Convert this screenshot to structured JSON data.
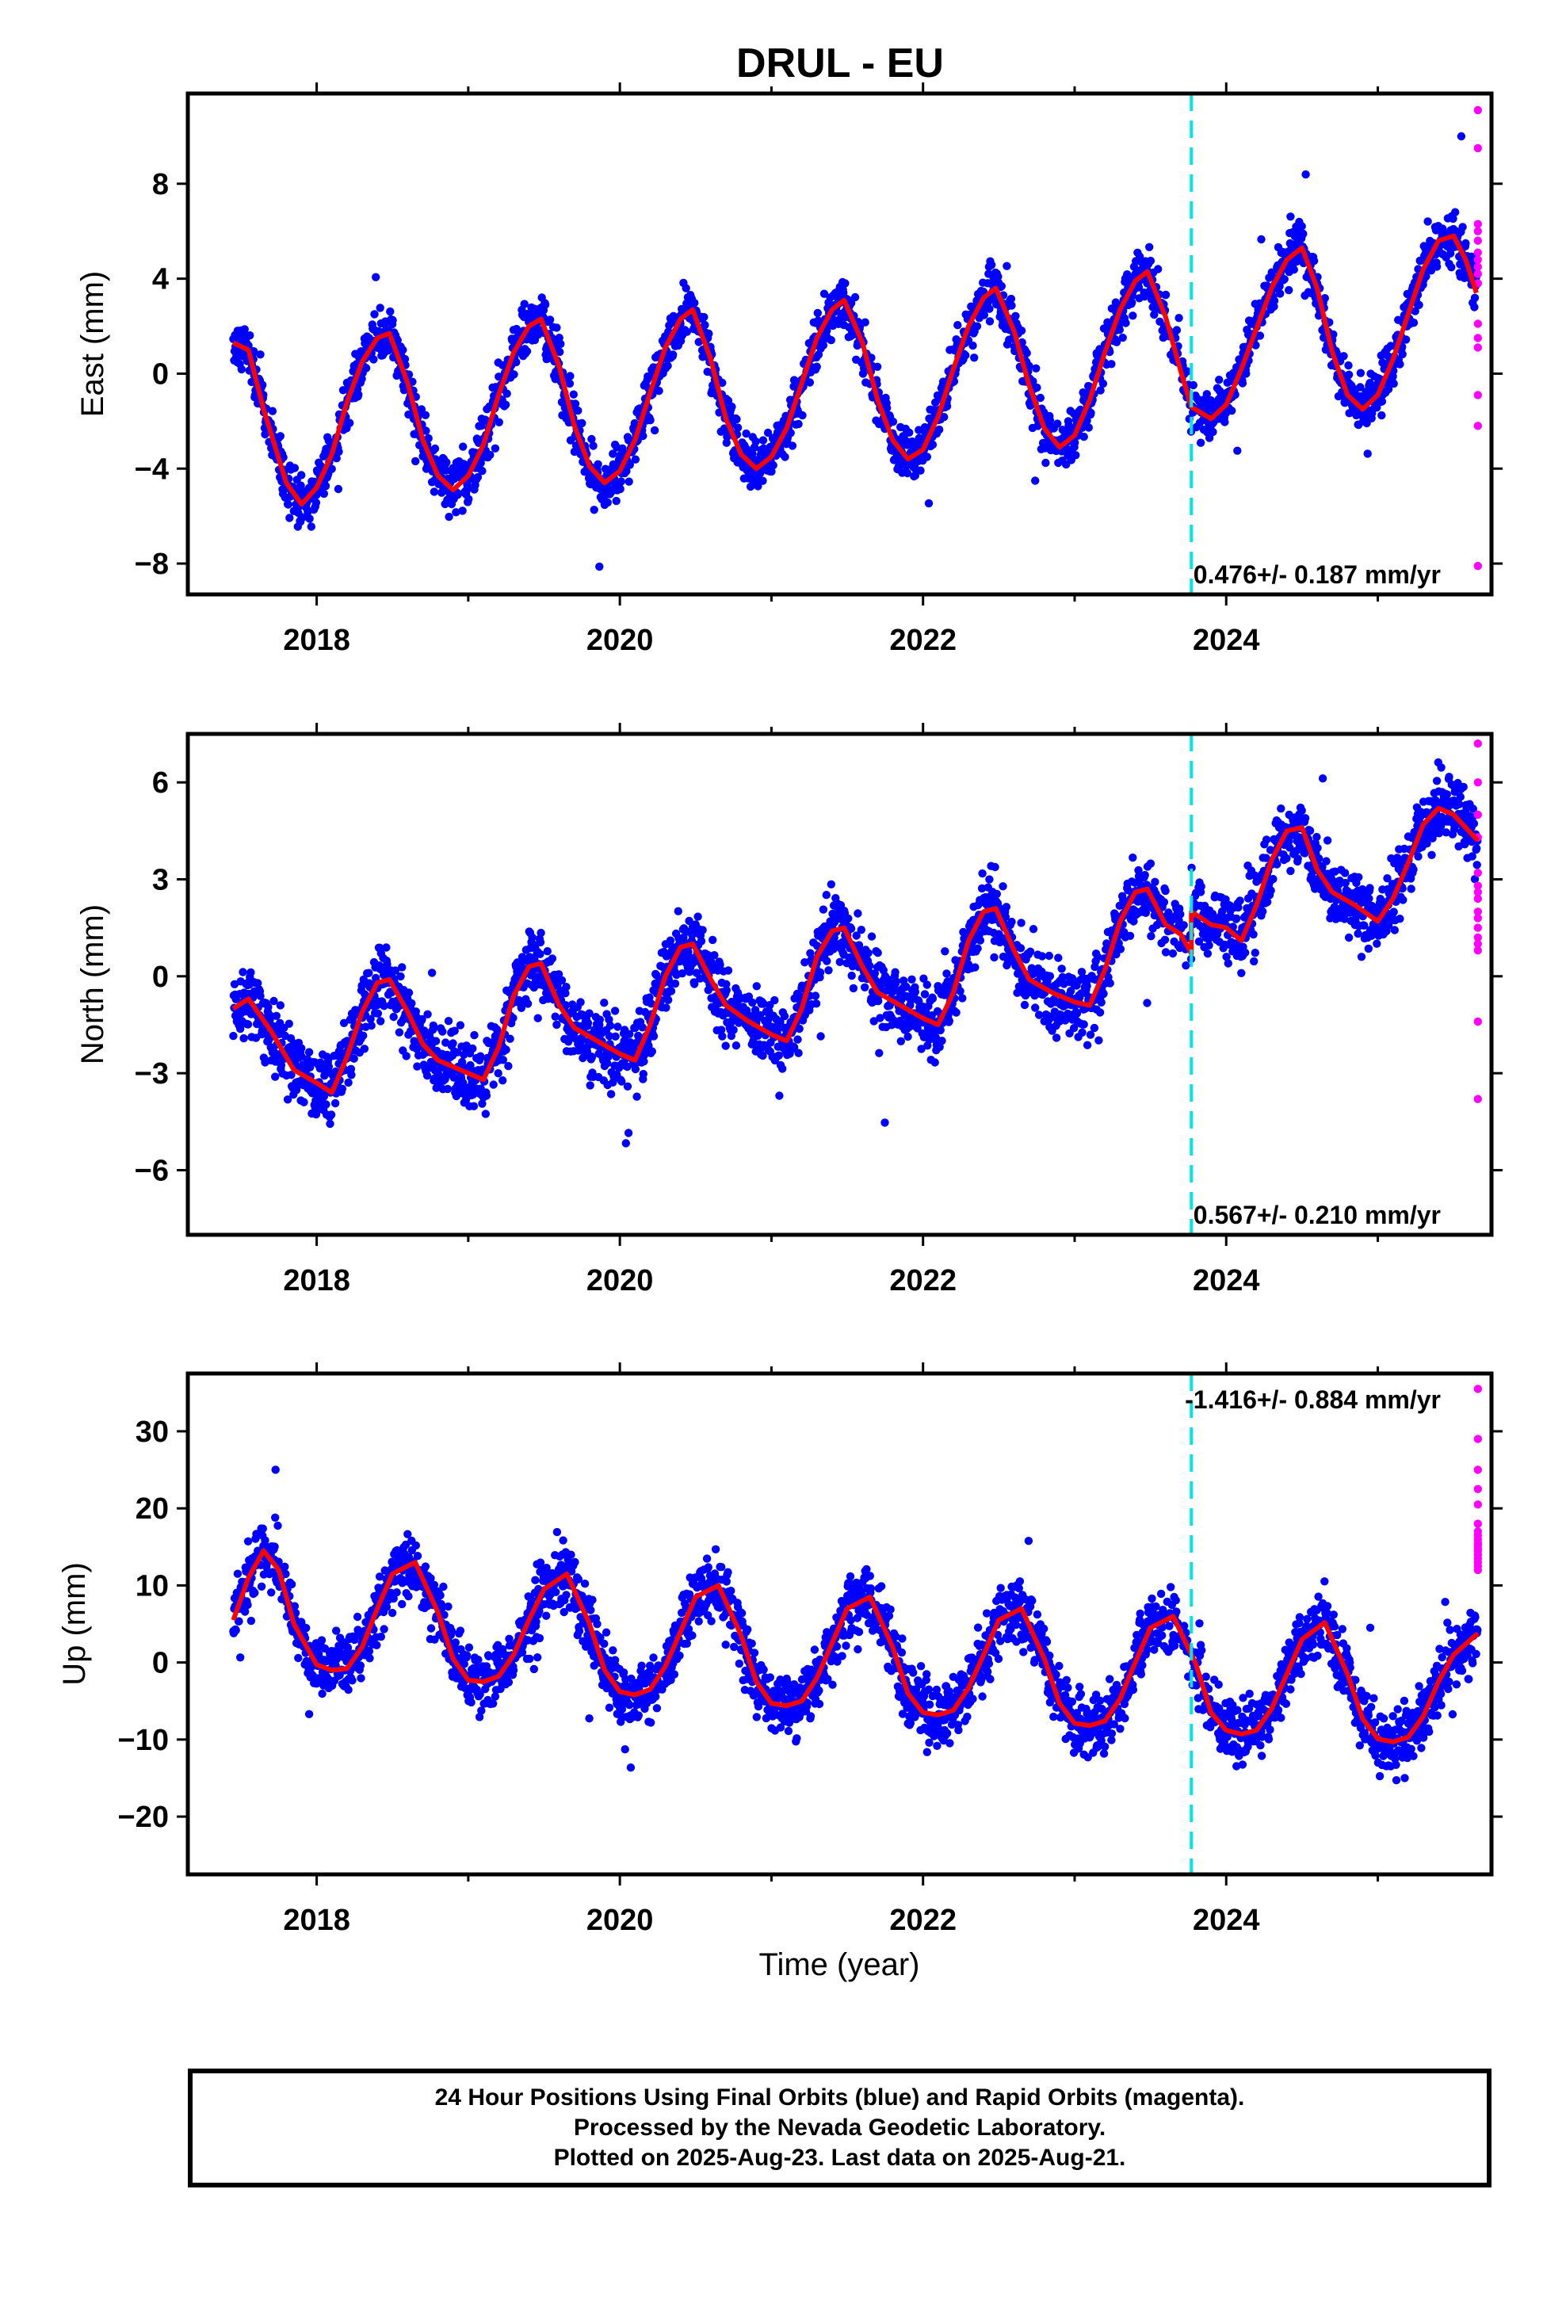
{
  "figure": {
    "title": "DRUL - EU",
    "xlabel": "Time (year)",
    "caption_lines": [
      "24 Hour Positions Using Final Orbits (blue) and Rapid Orbits (magenta).",
      "Processed by the Nevada Geodetic Laboratory.",
      "Plotted on 2025-Aug-23. Last data on 2025-Aug-21."
    ]
  },
  "chart_data": [
    {
      "type": "scatter",
      "component": "East",
      "ylabel": "East (mm)",
      "rate_label": "0.476+/- 0.187 mm/yr",
      "xlim": [
        2017.15,
        2025.75
      ],
      "ylim": [
        -9.3,
        11.8
      ],
      "xticks": [
        2018,
        2020,
        2022,
        2024
      ],
      "yticks": [
        -8,
        -4,
        0,
        4,
        8
      ],
      "equipment_change": 2023.77,
      "colors": {
        "final": "#0000ff",
        "rapid": "#ff00ff",
        "model": "#ff0000",
        "break": "#00e5e5"
      },
      "model": {
        "x": [
          2017.45,
          2017.55,
          2017.65,
          2017.8,
          2017.9,
          2018.0,
          2018.1,
          2018.2,
          2018.3,
          2018.4,
          2018.48,
          2018.6,
          2018.7,
          2018.8,
          2018.9,
          2019.0,
          2019.1,
          2019.2,
          2019.3,
          2019.4,
          2019.48,
          2019.6,
          2019.7,
          2019.8,
          2019.9,
          2020.0,
          2020.1,
          2020.2,
          2020.3,
          2020.4,
          2020.48,
          2020.6,
          2020.7,
          2020.8,
          2020.9,
          2021.0,
          2021.1,
          2021.2,
          2021.3,
          2021.4,
          2021.48,
          2021.6,
          2021.7,
          2021.8,
          2021.9,
          2022.0,
          2022.1,
          2022.2,
          2022.3,
          2022.4,
          2022.48,
          2022.6,
          2022.7,
          2022.8,
          2022.9,
          2023.0,
          2023.1,
          2023.2,
          2023.3,
          2023.4,
          2023.48,
          2023.6,
          2023.7,
          2023.77,
          2023.77,
          2023.9,
          2024.0,
          2024.1,
          2024.2,
          2024.3,
          2024.4,
          2024.5,
          2024.6,
          2024.7,
          2024.8,
          2024.9,
          2025.0,
          2025.1,
          2025.2,
          2025.3,
          2025.4,
          2025.5,
          2025.58,
          2025.65
        ],
        "y": [
          1.3,
          1.0,
          -1.5,
          -4.6,
          -5.5,
          -4.8,
          -3.4,
          -1.2,
          0.5,
          1.5,
          1.7,
          -0.4,
          -2.8,
          -4.3,
          -4.9,
          -4.3,
          -3.0,
          -0.9,
          0.9,
          2.0,
          2.3,
          0.3,
          -2.2,
          -3.9,
          -4.6,
          -4.1,
          -2.8,
          -0.8,
          1.1,
          2.3,
          2.7,
          0.6,
          -1.9,
          -3.4,
          -4.0,
          -3.5,
          -2.3,
          -0.4,
          1.5,
          2.7,
          3.1,
          1.3,
          -1.1,
          -2.8,
          -3.6,
          -3.2,
          -1.8,
          0.2,
          2.0,
          3.2,
          3.6,
          1.8,
          -0.5,
          -2.3,
          -3.1,
          -2.6,
          -1.1,
          0.9,
          2.7,
          3.9,
          4.3,
          2.4,
          0.1,
          -1.4,
          -1.4,
          -1.9,
          -1.3,
          0.2,
          1.9,
          3.6,
          4.8,
          5.3,
          3.6,
          0.9,
          -0.9,
          -1.5,
          -0.9,
          0.6,
          2.5,
          4.4,
          5.6,
          5.8,
          4.8,
          3.4
        ]
      },
      "rapid_points": {
        "x": [
          2025.66,
          2025.66,
          2025.66,
          2025.66,
          2025.66,
          2025.66,
          2025.66,
          2025.66,
          2025.66,
          2025.66,
          2025.66,
          2025.66,
          2025.66,
          2025.66,
          2025.66,
          2025.66
        ],
        "y": [
          11.1,
          9.5,
          6.3,
          6.0,
          5.6,
          5.1,
          4.8,
          4.5,
          4.2,
          3.8,
          2.1,
          1.5,
          1.1,
          -0.9,
          -2.2,
          -8.1
        ]
      }
    },
    {
      "type": "scatter",
      "component": "North",
      "ylabel": "North (mm)",
      "rate_label": "0.567+/- 0.210 mm/yr",
      "xlim": [
        2017.15,
        2025.75
      ],
      "ylim": [
        -8.0,
        7.5
      ],
      "xticks": [
        2018,
        2020,
        2022,
        2024
      ],
      "yticks": [
        -6,
        -3,
        0,
        3,
        6
      ],
      "equipment_change": 2023.77,
      "colors": {
        "final": "#0000ff",
        "rapid": "#ff00ff",
        "model": "#ff0000",
        "break": "#00e5e5"
      },
      "model": {
        "x": [
          2017.45,
          2017.55,
          2017.7,
          2017.85,
          2018.0,
          2018.1,
          2018.2,
          2018.3,
          2018.4,
          2018.48,
          2018.6,
          2018.7,
          2018.8,
          2018.95,
          2019.1,
          2019.2,
          2019.3,
          2019.4,
          2019.48,
          2019.6,
          2019.7,
          2019.85,
          2020.0,
          2020.1,
          2020.2,
          2020.3,
          2020.4,
          2020.48,
          2020.6,
          2020.7,
          2020.85,
          2021.0,
          2021.1,
          2021.2,
          2021.3,
          2021.4,
          2021.48,
          2021.6,
          2021.7,
          2021.85,
          2022.0,
          2022.1,
          2022.2,
          2022.3,
          2022.4,
          2022.48,
          2022.6,
          2022.7,
          2022.85,
          2023.0,
          2023.1,
          2023.2,
          2023.3,
          2023.4,
          2023.48,
          2023.6,
          2023.7,
          2023.77,
          2023.77,
          2023.9,
          2024.0,
          2024.1,
          2024.2,
          2024.3,
          2024.4,
          2024.5,
          2024.6,
          2024.7,
          2024.85,
          2025.0,
          2025.1,
          2025.2,
          2025.3,
          2025.4,
          2025.5,
          2025.6,
          2025.66
        ],
        "y": [
          -1.0,
          -0.7,
          -1.7,
          -2.9,
          -3.3,
          -3.6,
          -2.5,
          -1.1,
          -0.2,
          -0.1,
          -1.1,
          -2.1,
          -2.6,
          -2.9,
          -3.2,
          -2.2,
          -0.6,
          0.3,
          0.4,
          -0.9,
          -1.6,
          -2.0,
          -2.4,
          -2.6,
          -1.5,
          0.0,
          0.9,
          1.0,
          -0.1,
          -0.9,
          -1.4,
          -1.8,
          -2.0,
          -1.0,
          0.6,
          1.4,
          1.5,
          0.3,
          -0.5,
          -0.9,
          -1.3,
          -1.5,
          -0.5,
          1.1,
          2.0,
          2.1,
          0.8,
          -0.1,
          -0.5,
          -0.8,
          -0.9,
          0.2,
          1.7,
          2.6,
          2.7,
          1.6,
          1.3,
          0.7,
          2.0,
          1.6,
          1.5,
          1.1,
          2.2,
          3.6,
          4.5,
          4.6,
          3.3,
          2.6,
          2.2,
          1.7,
          2.4,
          3.5,
          4.7,
          5.2,
          5.0,
          4.5,
          4.2
        ]
      },
      "rapid_points": {
        "x": [
          2025.66,
          2025.66,
          2025.66,
          2025.66,
          2025.66,
          2025.66,
          2025.66,
          2025.66,
          2025.66,
          2025.66,
          2025.66,
          2025.66,
          2025.66,
          2025.66,
          2025.66,
          2025.66
        ],
        "y": [
          7.2,
          6.0,
          5.0,
          4.3,
          3.2,
          2.8,
          2.4,
          2.0,
          1.8,
          1.5,
          1.2,
          0.8,
          1.0,
          -1.4,
          -3.8,
          2.6
        ]
      }
    },
    {
      "type": "scatter",
      "component": "Up",
      "ylabel": "Up (mm)",
      "rate_label": "-1.416+/- 0.884 mm/yr",
      "xlim": [
        2017.15,
        2025.75
      ],
      "ylim": [
        -27.5,
        37.5
      ],
      "xticks": [
        2018,
        2020,
        2022,
        2024
      ],
      "yticks": [
        -20,
        -10,
        0,
        10,
        20,
        30
      ],
      "equipment_change": 2023.77,
      "colors": {
        "final": "#0000ff",
        "rapid": "#ff00ff",
        "model": "#ff0000",
        "break": "#00e5e5"
      },
      "model": {
        "x": [
          2017.45,
          2017.55,
          2017.65,
          2017.75,
          2017.85,
          2018.0,
          2018.1,
          2018.2,
          2018.3,
          2018.4,
          2018.5,
          2018.65,
          2018.8,
          2018.9,
          2019.0,
          2019.1,
          2019.2,
          2019.3,
          2019.4,
          2019.5,
          2019.65,
          2019.8,
          2019.9,
          2020.0,
          2020.1,
          2020.2,
          2020.3,
          2020.4,
          2020.5,
          2020.65,
          2020.8,
          2020.9,
          2021.0,
          2021.1,
          2021.2,
          2021.3,
          2021.4,
          2021.5,
          2021.65,
          2021.8,
          2021.9,
          2022.0,
          2022.1,
          2022.2,
          2022.3,
          2022.4,
          2022.5,
          2022.65,
          2022.8,
          2022.9,
          2023.0,
          2023.1,
          2023.2,
          2023.3,
          2023.4,
          2023.5,
          2023.65,
          2023.8,
          2023.9,
          2024.0,
          2024.1,
          2024.2,
          2024.3,
          2024.4,
          2024.5,
          2024.65,
          2024.8,
          2024.9,
          2025.0,
          2025.1,
          2025.2,
          2025.3,
          2025.4,
          2025.5,
          2025.66
        ],
        "y": [
          5.5,
          11.0,
          14.5,
          12.0,
          5.0,
          -0.3,
          -1.0,
          -0.8,
          2.0,
          7.0,
          11.5,
          13.0,
          6.5,
          0.5,
          -2.3,
          -2.5,
          -1.8,
          1.0,
          5.5,
          9.5,
          11.5,
          5.0,
          -1.0,
          -3.8,
          -4.2,
          -3.5,
          -0.5,
          4.0,
          8.5,
          10.0,
          3.5,
          -2.5,
          -5.3,
          -5.6,
          -5.0,
          -2.0,
          2.5,
          7.0,
          8.5,
          2.0,
          -4.0,
          -6.5,
          -6.8,
          -6.2,
          -3.3,
          1.0,
          5.5,
          7.0,
          0.5,
          -5.3,
          -7.9,
          -8.2,
          -7.6,
          -4.7,
          0.0,
          4.5,
          6.0,
          -0.2,
          -6.5,
          -8.8,
          -9.3,
          -8.8,
          -6.0,
          -1.5,
          3.0,
          5.2,
          -1.5,
          -7.3,
          -9.9,
          -10.3,
          -9.7,
          -7.0,
          -2.5,
          1.0,
          3.8
        ]
      },
      "rapid_points": {
        "x": [
          2025.66,
          2025.66,
          2025.66,
          2025.66,
          2025.66,
          2025.66,
          2025.66,
          2025.66,
          2025.66,
          2025.66,
          2025.66,
          2025.66,
          2025.66,
          2025.66,
          2025.66,
          2025.66,
          2025.66,
          2025.66
        ],
        "y": [
          35.5,
          29.0,
          25.0,
          22.5,
          20.5,
          18.0,
          17.0,
          16.5,
          16.0,
          15.5,
          15.2,
          14.8,
          14.5,
          14.0,
          13.5,
          13.0,
          12.5,
          12.0
        ]
      }
    }
  ]
}
